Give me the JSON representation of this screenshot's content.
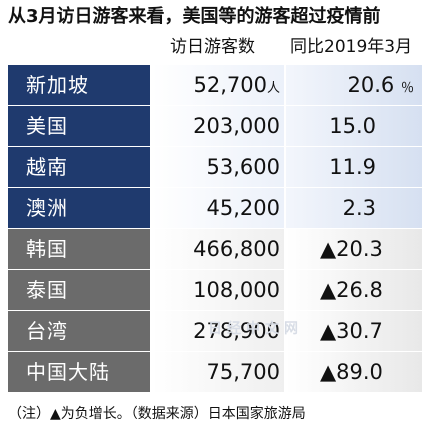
{
  "title": "从3月访日游客来看，美国等的游客超过疫情前",
  "headers": {
    "visitors": "访日游客数",
    "yoy": "同比2019年3月"
  },
  "rows": [
    {
      "name": "新加坡",
      "visitors": "52,700",
      "unit": "人",
      "rate": "20.6",
      "rate_unit": "％",
      "group": "blue"
    },
    {
      "name": "美国",
      "visitors": "203,000",
      "unit": "",
      "rate": "15.0",
      "rate_unit": "",
      "group": "blue"
    },
    {
      "name": "越南",
      "visitors": "53,600",
      "unit": "",
      "rate": "11.9",
      "rate_unit": "",
      "group": "blue"
    },
    {
      "name": "澳洲",
      "visitors": "45,200",
      "unit": "",
      "rate": "2.3",
      "rate_unit": "",
      "group": "blue"
    },
    {
      "name": "韩国",
      "visitors": "466,800",
      "unit": "",
      "rate": "▲20.3",
      "rate_unit": "",
      "group": "gray"
    },
    {
      "name": "泰国",
      "visitors": "108,000",
      "unit": "",
      "rate": "▲26.8",
      "rate_unit": "",
      "group": "gray"
    },
    {
      "name": "台湾",
      "visitors": "278,900",
      "unit": "",
      "rate": "▲30.7",
      "rate_unit": "",
      "group": "gray"
    },
    {
      "name": "中国大陆",
      "visitors": "75,700",
      "unit": "",
      "rate": "▲89.0",
      "rate_unit": "",
      "group": "gray"
    }
  ],
  "watermark": "日经中文网",
  "footer": "（注）▲为负增长。（数据来源）日本国家旅游局",
  "colors": {
    "blue_label_bg": "#1f3a6e",
    "gray_label_bg": "#6b6b6b"
  }
}
